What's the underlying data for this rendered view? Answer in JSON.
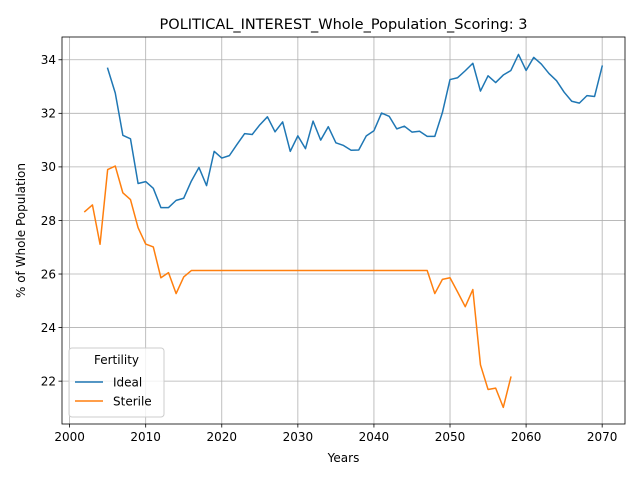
{
  "chart_data": {
    "type": "line",
    "title": "POLITICAL_INTEREST_Whole_Population_Scoring: 3",
    "xlabel": "Years",
    "ylabel": "% of Whole Population",
    "xlim": [
      1999,
      2073
    ],
    "ylim": [
      20.4,
      34.85
    ],
    "xticks": [
      2000,
      2010,
      2020,
      2030,
      2040,
      2050,
      2060,
      2070
    ],
    "yticks": [
      22,
      24,
      26,
      28,
      30,
      32,
      34
    ],
    "grid": true,
    "legend": {
      "title": "Fertility",
      "placement": "lower-left"
    },
    "colors": {
      "Ideal": "#1f77b4",
      "Sterile": "#ff7f0e"
    },
    "series": [
      {
        "name": "Ideal",
        "x": [
          2005,
          2006,
          2007,
          2008,
          2009,
          2010,
          2011,
          2012,
          2013,
          2014,
          2015,
          2016,
          2017,
          2018,
          2019,
          2020,
          2021,
          2022,
          2023,
          2024,
          2025,
          2026,
          2027,
          2028,
          2029,
          2030,
          2031,
          2032,
          2033,
          2034,
          2035,
          2036,
          2037,
          2038,
          2039,
          2040,
          2041,
          2042,
          2043,
          2044,
          2045,
          2046,
          2047,
          2048,
          2049,
          2050,
          2051,
          2052,
          2053,
          2054,
          2055,
          2056,
          2057,
          2058,
          2059,
          2060,
          2061,
          2062,
          2063,
          2064,
          2065,
          2066,
          2067,
          2068,
          2069,
          2070
        ],
        "values": [
          33.68,
          32.76,
          31.18,
          31.05,
          29.38,
          29.45,
          29.2,
          28.48,
          28.48,
          28.75,
          28.83,
          29.47,
          29.98,
          29.3,
          30.58,
          30.33,
          30.42,
          30.84,
          31.24,
          31.21,
          31.57,
          31.87,
          31.31,
          31.68,
          30.58,
          31.16,
          30.68,
          31.71,
          31.0,
          31.5,
          30.9,
          30.8,
          30.62,
          30.63,
          31.16,
          31.35,
          32.01,
          31.89,
          31.42,
          31.52,
          31.3,
          31.33,
          31.14,
          31.14,
          32.03,
          33.26,
          33.33,
          33.59,
          33.87,
          32.83,
          33.4,
          33.15,
          33.43,
          33.6,
          34.2,
          33.6,
          34.09,
          33.84,
          33.49,
          33.22,
          32.79,
          32.45,
          32.38,
          32.66,
          32.63,
          33.76
        ]
      },
      {
        "name": "Sterile",
        "x": [
          2002,
          2003,
          2004,
          2005,
          2006,
          2007,
          2008,
          2009,
          2010,
          2011,
          2012,
          2013,
          2014,
          2015,
          2016,
          2017,
          2018,
          2019,
          2020,
          2021,
          2022,
          2023,
          2024,
          2025,
          2026,
          2027,
          2028,
          2029,
          2030,
          2031,
          2032,
          2033,
          2034,
          2035,
          2036,
          2037,
          2038,
          2039,
          2040,
          2041,
          2042,
          2043,
          2044,
          2045,
          2046,
          2047,
          2048,
          2049,
          2050,
          2051,
          2052,
          2053,
          2054,
          2055,
          2056,
          2057,
          2058
        ],
        "values": [
          28.33,
          28.58,
          27.11,
          29.9,
          30.03,
          29.03,
          28.78,
          27.73,
          27.12,
          27.01,
          25.86,
          26.05,
          25.27,
          25.89,
          26.13,
          26.13,
          26.13,
          26.13,
          26.13,
          26.13,
          26.13,
          26.13,
          26.13,
          26.13,
          26.13,
          26.13,
          26.13,
          26.13,
          26.13,
          26.13,
          26.13,
          26.13,
          26.13,
          26.13,
          26.13,
          26.13,
          26.13,
          26.13,
          26.13,
          26.13,
          26.13,
          26.13,
          26.13,
          26.13,
          26.13,
          26.13,
          25.27,
          25.8,
          25.86,
          25.33,
          24.78,
          25.42,
          22.61,
          21.69,
          21.74,
          21.02,
          22.15
        ]
      }
    ]
  }
}
